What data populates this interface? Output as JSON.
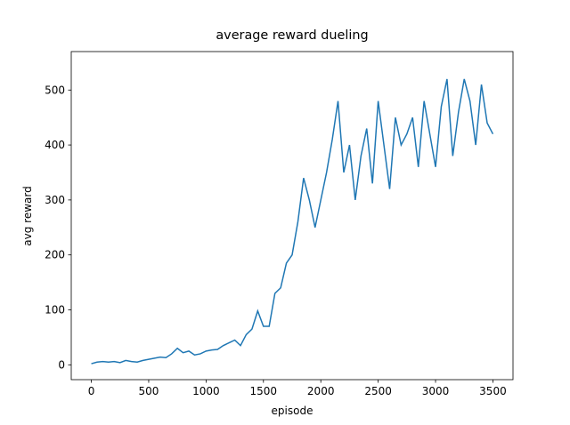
{
  "chart_data": {
    "type": "line",
    "title": "average reward dueling",
    "x_label": "episode",
    "y_label": "avg reward",
    "x": [
      0,
      50,
      100,
      150,
      200,
      250,
      300,
      350,
      400,
      450,
      500,
      550,
      600,
      650,
      700,
      750,
      800,
      850,
      900,
      950,
      1000,
      1050,
      1100,
      1150,
      1200,
      1250,
      1300,
      1350,
      1400,
      1450,
      1500,
      1550,
      1600,
      1650,
      1700,
      1750,
      1800,
      1850,
      1900,
      1950,
      2000,
      2050,
      2100,
      2150,
      2200,
      2250,
      2300,
      2350,
      2400,
      2450,
      2500,
      2550,
      2600,
      2650,
      2700,
      2750,
      2800,
      2850,
      2900,
      2950,
      3000,
      3050,
      3100,
      3150,
      3200,
      3250,
      3300,
      3350,
      3400,
      3450,
      3500
    ],
    "series": [
      {
        "name": "avg reward",
        "color": "#1f77b4",
        "values": [
          2,
          5,
          6,
          5,
          6,
          4,
          8,
          6,
          5,
          8,
          10,
          12,
          14,
          13,
          20,
          30,
          22,
          25,
          18,
          20,
          25,
          27,
          28,
          35,
          40,
          45,
          35,
          55,
          65,
          98,
          70,
          70,
          130,
          140,
          185,
          200,
          260,
          340,
          300,
          250,
          300,
          350,
          410,
          480,
          350,
          400,
          300,
          380,
          430,
          330,
          480,
          400,
          320,
          450,
          400,
          420,
          450,
          360,
          480,
          420,
          360,
          470,
          520,
          380,
          460,
          520,
          480,
          400,
          510,
          440,
          420
        ]
      }
    ],
    "xlim": [
      -175,
      3675
    ],
    "xticks": [
      0,
      500,
      1000,
      1500,
      2000,
      2500,
      3000,
      3500
    ],
    "ylim": [
      -27,
      570
    ],
    "yticks": [
      0,
      100,
      200,
      300,
      400,
      500
    ]
  }
}
